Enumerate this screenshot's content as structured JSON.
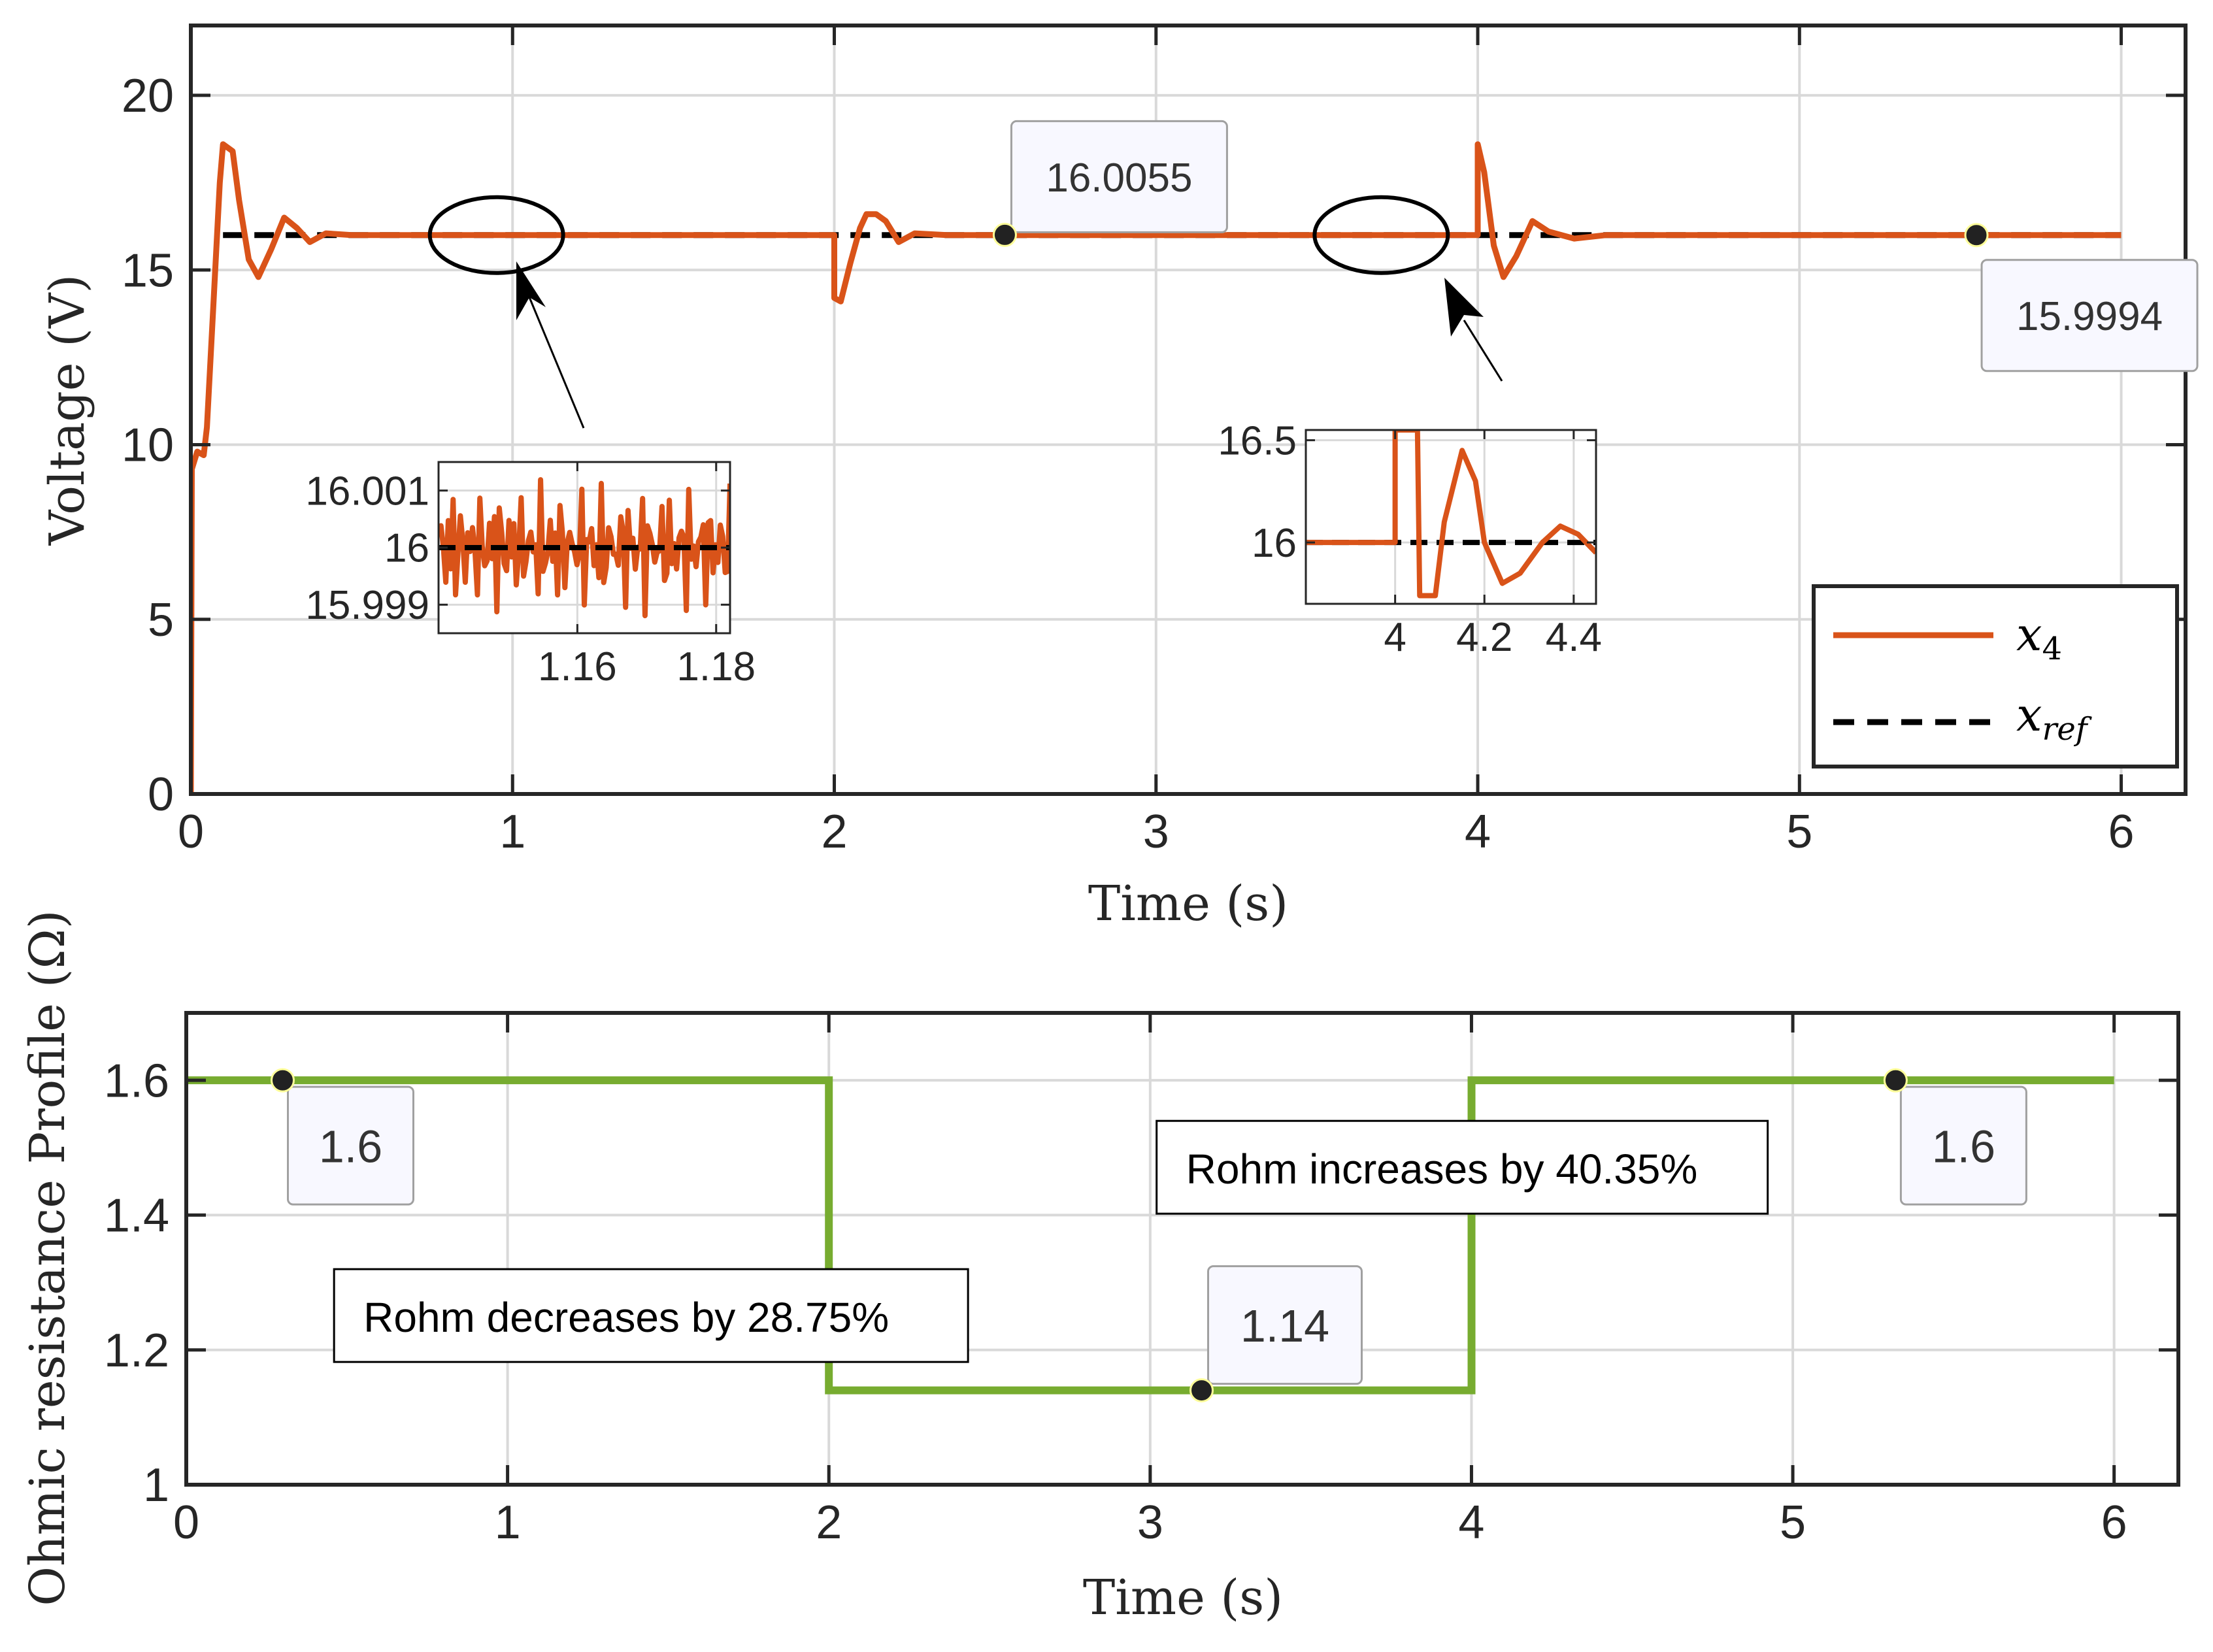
{
  "colors": {
    "voltage": "#D95319",
    "reference": "#000000",
    "resistance": "#77AC30",
    "grid": "#d9d9d9",
    "axis": "#262626",
    "datatip_bg": "#f8f8ff",
    "datatip_border": "#a0a0a0"
  },
  "chart_data": [
    {
      "id": "voltage",
      "type": "line",
      "xlabel": "Time (s)",
      "ylabel": "Voltage (V)",
      "xlim": [
        0,
        6.2
      ],
      "ylim": [
        0,
        22
      ],
      "xticks": [
        0,
        1,
        2,
        3,
        4,
        5,
        6
      ],
      "xtick_labels": [
        "0",
        "1",
        "2",
        "3",
        "4",
        "5",
        "6"
      ],
      "yticks": [
        0,
        5,
        10,
        15,
        20
      ],
      "ytick_labels": [
        "0",
        "5",
        "10",
        "15",
        "20"
      ],
      "grid": true,
      "series": [
        {
          "name": "x4",
          "style": "solid",
          "points": [
            [
              0,
              0
            ],
            [
              0.003,
              9.3
            ],
            [
              0.02,
              9.8
            ],
            [
              0.04,
              9.7
            ],
            [
              0.05,
              10.5
            ],
            [
              0.07,
              14
            ],
            [
              0.09,
              17.5
            ],
            [
              0.1,
              18.6
            ],
            [
              0.13,
              18.4
            ],
            [
              0.15,
              17
            ],
            [
              0.18,
              15.3
            ],
            [
              0.21,
              14.8
            ],
            [
              0.25,
              15.6
            ],
            [
              0.29,
              16.5
            ],
            [
              0.33,
              16.2
            ],
            [
              0.37,
              15.8
            ],
            [
              0.42,
              16.05
            ],
            [
              0.5,
              16
            ],
            [
              2.0,
              16
            ],
            [
              2.0,
              14.2
            ],
            [
              2.02,
              14.1
            ],
            [
              2.05,
              15.2
            ],
            [
              2.08,
              16.2
            ],
            [
              2.1,
              16.6
            ],
            [
              2.13,
              16.6
            ],
            [
              2.16,
              16.4
            ],
            [
              2.2,
              15.8
            ],
            [
              2.25,
              16.05
            ],
            [
              2.35,
              16
            ],
            [
              4.0,
              16
            ],
            [
              4.0,
              18.6
            ],
            [
              4.02,
              17.8
            ],
            [
              4.05,
              15.7
            ],
            [
              4.08,
              14.8
            ],
            [
              4.12,
              15.4
            ],
            [
              4.17,
              16.4
            ],
            [
              4.22,
              16.1
            ],
            [
              4.3,
              15.9
            ],
            [
              4.4,
              16
            ],
            [
              6.0,
              16
            ]
          ]
        },
        {
          "name": "xref",
          "style": "dashed",
          "points": [
            [
              0.1,
              16
            ],
            [
              6.0,
              16
            ]
          ]
        }
      ],
      "legend": {
        "position": "bottom-right",
        "entries": [
          {
            "symbol": "x",
            "sub": "4"
          },
          {
            "symbol": "x",
            "sub": "ref"
          }
        ]
      },
      "datatips": [
        {
          "x": 2.53,
          "y": 16.0055,
          "label": "16.0055",
          "side": "above"
        },
        {
          "x": 5.55,
          "y": 15.9994,
          "label": "15.9994",
          "side": "below"
        }
      ],
      "zoom_ellipses": [
        {
          "cx": 0.95,
          "cy": 16
        },
        {
          "cx": 3.7,
          "cy": 16
        }
      ],
      "insets": [
        {
          "id": "inset1",
          "xlim": [
            1.14,
            1.182
          ],
          "ylim": [
            15.9985,
            16.0015
          ],
          "xticks": [
            1.16,
            1.18
          ],
          "xtick_labels": [
            "1.16",
            "1.18"
          ],
          "yticks": [
            15.999,
            16,
            16.001
          ],
          "ytick_labels": [
            "15.999",
            "16",
            "16.001"
          ],
          "reference": 16
        },
        {
          "id": "inset2",
          "xlim": [
            3.8,
            4.45
          ],
          "ylim": [
            15.7,
            16.55
          ],
          "xticks": [
            4,
            4.2,
            4.4
          ],
          "xtick_labels": [
            "4",
            "4.2",
            "4.4"
          ],
          "yticks": [
            16,
            16.5
          ],
          "ytick_labels": [
            "16",
            "16.5"
          ],
          "reference": 16,
          "points": [
            [
              3.8,
              16
            ],
            [
              4.0,
              16
            ],
            [
              4.0,
              16.55
            ],
            [
              4.05,
              16.55
            ],
            [
              4.055,
              15.74
            ],
            [
              4.09,
              15.74
            ],
            [
              4.11,
              16.1
            ],
            [
              4.15,
              16.45
            ],
            [
              4.18,
              16.3
            ],
            [
              4.2,
              16.0
            ],
            [
              4.24,
              15.8
            ],
            [
              4.28,
              15.85
            ],
            [
              4.33,
              16.0
            ],
            [
              4.37,
              16.08
            ],
            [
              4.41,
              16.04
            ],
            [
              4.45,
              15.95
            ]
          ]
        }
      ]
    },
    {
      "id": "resistance",
      "type": "line",
      "xlabel": "Time (s)",
      "ylabel": "Ohmic resistance Profile (Ω)",
      "xlim": [
        0,
        6.2
      ],
      "ylim": [
        1,
        1.7
      ],
      "xticks": [
        0,
        1,
        2,
        3,
        4,
        5,
        6
      ],
      "xtick_labels": [
        "0",
        "1",
        "2",
        "3",
        "4",
        "5",
        "6"
      ],
      "yticks": [
        1,
        1.2,
        1.4,
        1.6
      ],
      "ytick_labels": [
        "1",
        "1.2",
        "1.4",
        "1.6"
      ],
      "grid": true,
      "series": [
        {
          "name": "Rohm",
          "points": [
            [
              0,
              1.6
            ],
            [
              2,
              1.6
            ],
            [
              2,
              1.14
            ],
            [
              4,
              1.14
            ],
            [
              4,
              1.6
            ],
            [
              6,
              1.6
            ]
          ]
        }
      ],
      "datatips": [
        {
          "x": 0.3,
          "y": 1.6,
          "label": "1.6",
          "side": "below"
        },
        {
          "x": 3.16,
          "y": 1.14,
          "label": "1.14",
          "side": "above"
        },
        {
          "x": 5.32,
          "y": 1.6,
          "label": "1.6",
          "side": "below"
        }
      ],
      "annotations": [
        {
          "text": "Rohm decreases by 28.75%",
          "x": 0.46,
          "y": 1.25
        },
        {
          "text": "Rohm increases by 40.35%",
          "x": 3.02,
          "y": 1.47
        }
      ]
    }
  ]
}
